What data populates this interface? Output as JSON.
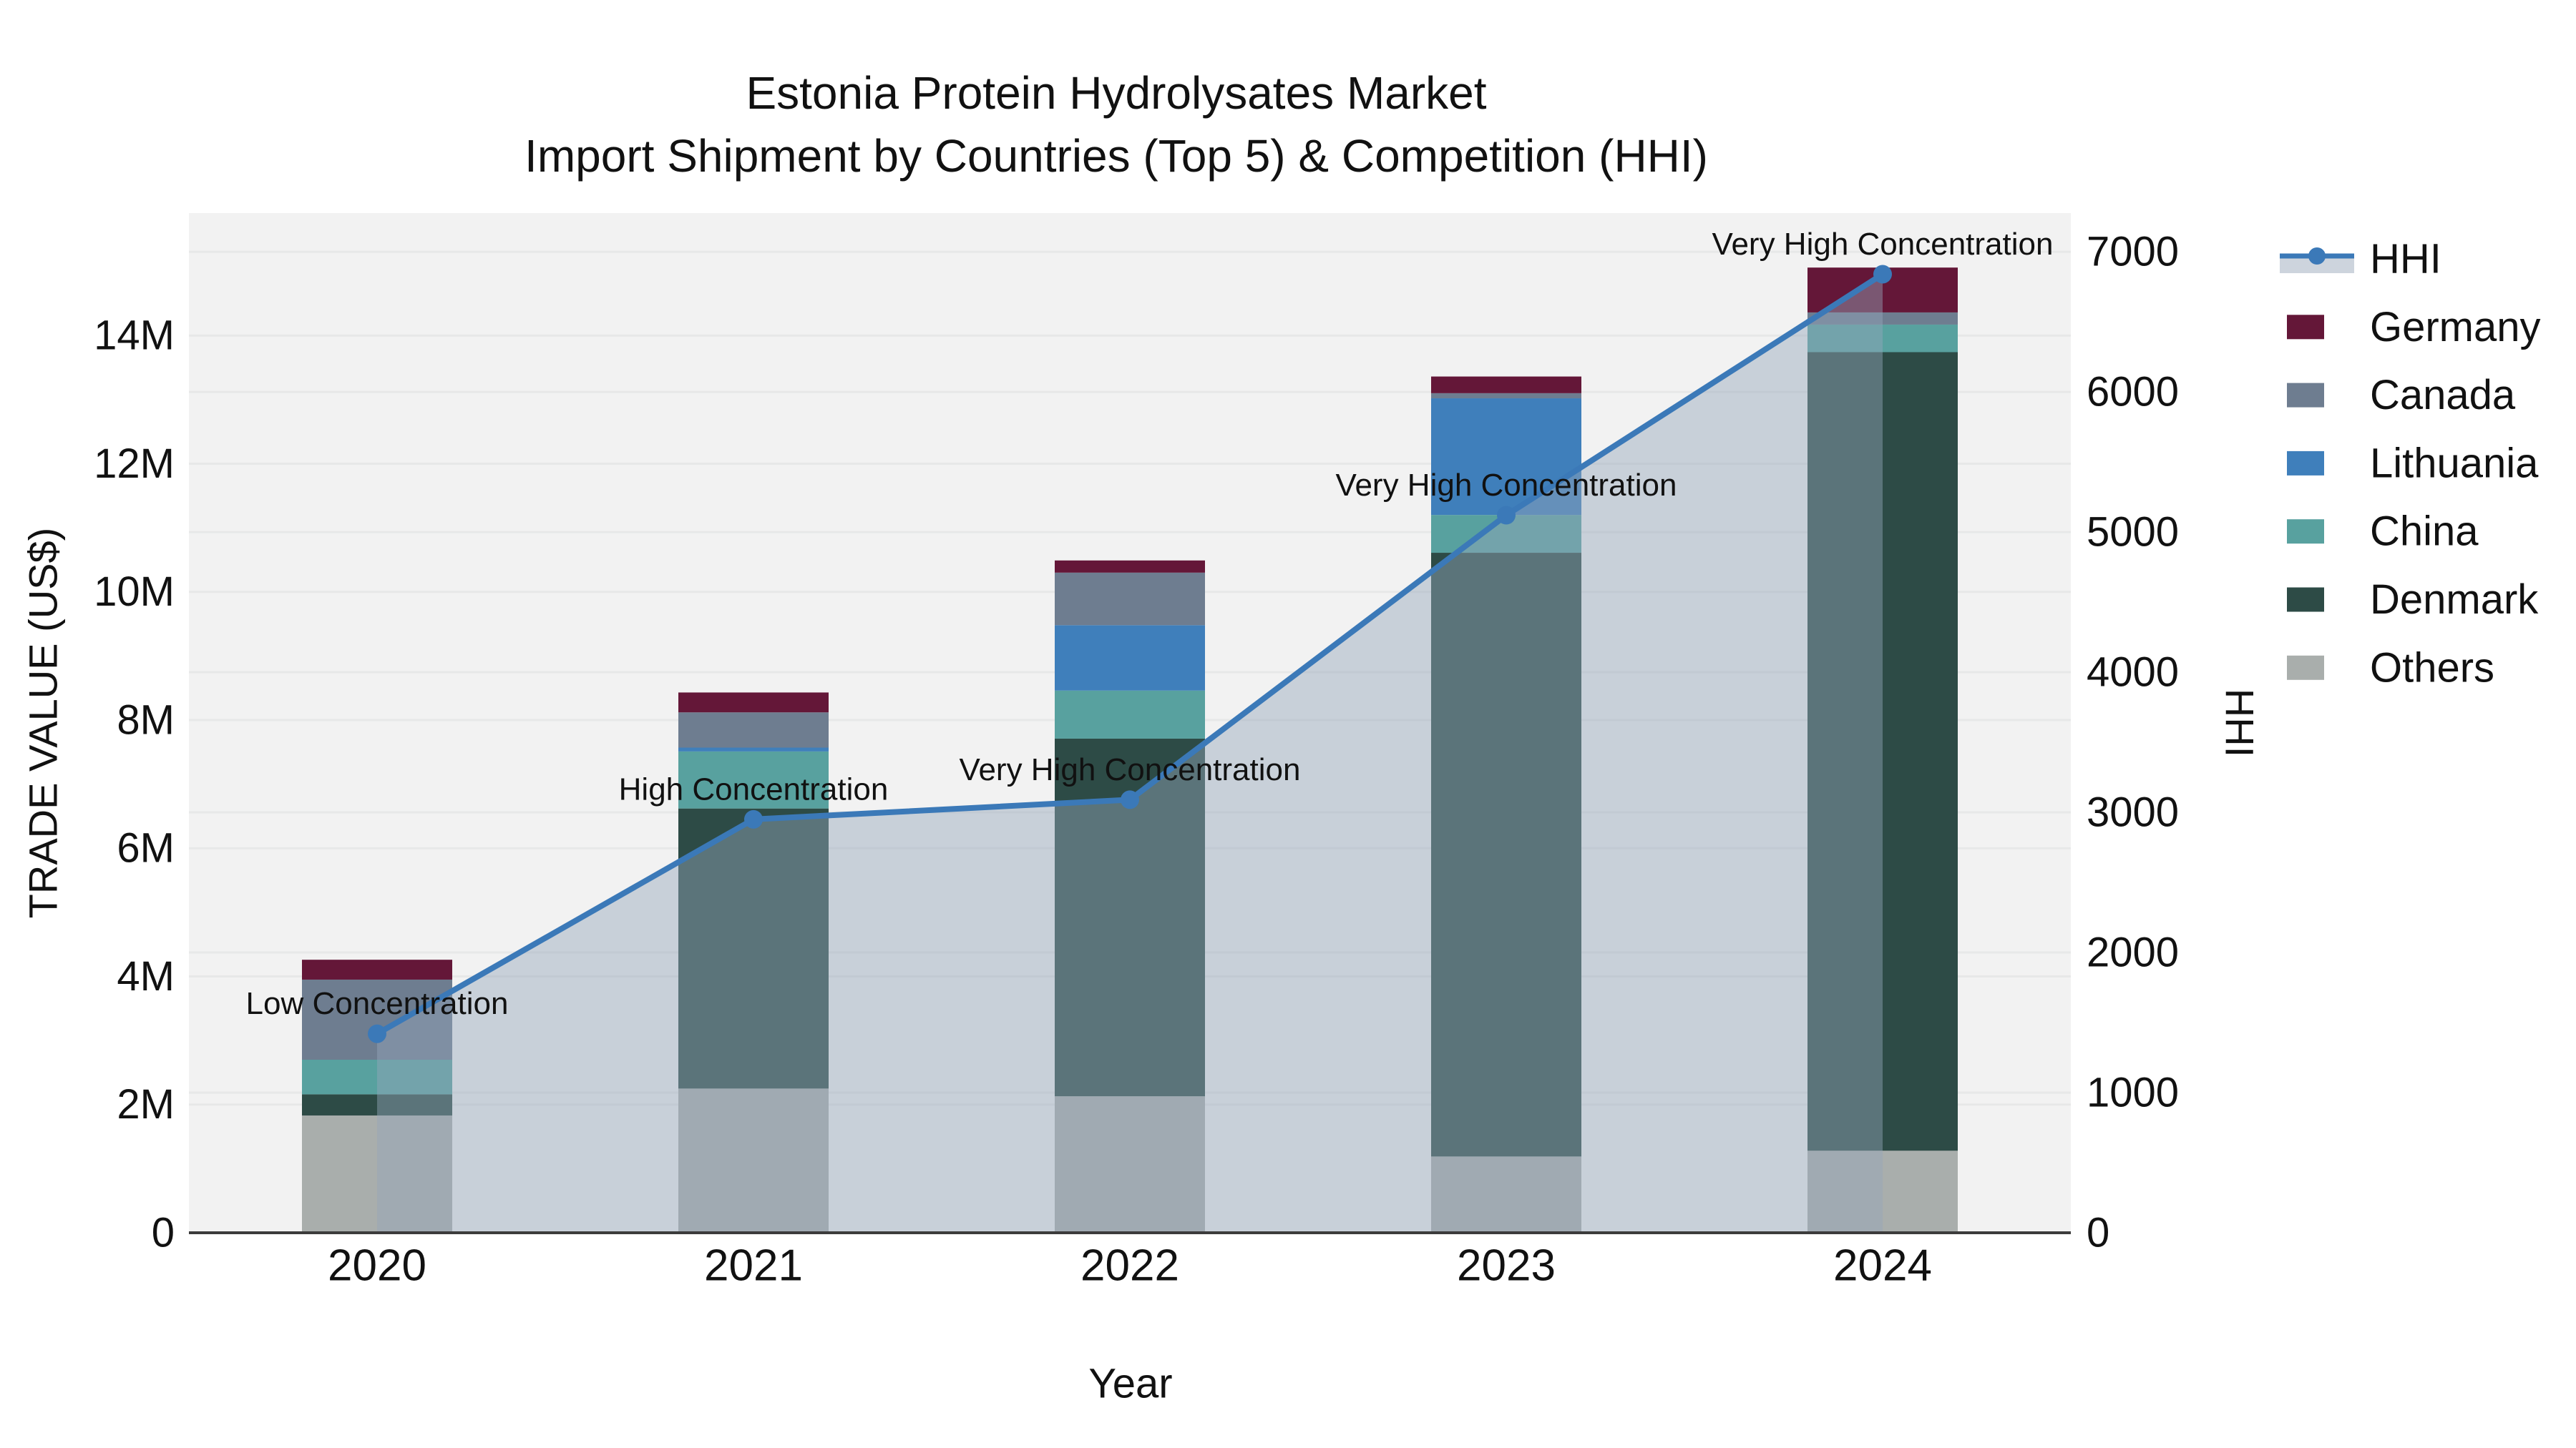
{
  "title": {
    "line1": "Estonia Protein Hydrolysates Market",
    "line2": "Import Shipment by Countries (Top 5) & Competition (HHI)"
  },
  "chart_data": {
    "type": "bar",
    "subtype": "stacked-bars-with-line-overlay",
    "categories": [
      "2020",
      "2021",
      "2022",
      "2023",
      "2024"
    ],
    "xlabel": "Year",
    "ylabel_left": "TRADE VALUE (US$)",
    "ylabel_right": "HHI",
    "yticks_left": [
      "0",
      "2M",
      "4M",
      "6M",
      "8M",
      "10M",
      "12M",
      "14M"
    ],
    "yticks_right": [
      "0",
      "1000",
      "2000",
      "3000",
      "4000",
      "5000",
      "6000",
      "7000"
    ],
    "ylim_left_musd": [
      0,
      15.91
    ],
    "ylim_right": [
      0,
      7276
    ],
    "grid": true,
    "legend_position": "right",
    "series": [
      {
        "name": "Others",
        "color": "#a9aeac",
        "values_musd": [
          1.83,
          2.25,
          2.13,
          1.19,
          1.28
        ]
      },
      {
        "name": "Denmark",
        "color": "#2d4b46",
        "values_musd": [
          0.33,
          4.37,
          5.58,
          9.42,
          12.46
        ]
      },
      {
        "name": "China",
        "color": "#58a19f",
        "values_musd": [
          0.54,
          0.89,
          0.75,
          0.59,
          0.43
        ]
      },
      {
        "name": "Lithuania",
        "color": "#3f7fbb",
        "values_musd": [
          0.0,
          0.06,
          1.02,
          1.82,
          0.0
        ]
      },
      {
        "name": "Canada",
        "color": "#6e7d90",
        "values_musd": [
          1.25,
          0.55,
          0.82,
          0.08,
          0.19
        ]
      },
      {
        "name": "Germany",
        "color": "#641738",
        "values_musd": [
          0.31,
          0.31,
          0.19,
          0.26,
          0.7
        ]
      }
    ],
    "line_series": {
      "name": "HHI",
      "color": "#3b79b8",
      "area_fill": "rgba(148,166,186,0.45)",
      "values": [
        1420,
        2950,
        3090,
        5120,
        6840
      ]
    },
    "annotations": [
      {
        "category": "2020",
        "text": "Low Concentration"
      },
      {
        "category": "2021",
        "text": "High Concentration"
      },
      {
        "category": "2022",
        "text": "Very High Concentration"
      },
      {
        "category": "2023",
        "text": "Very High Concentration"
      },
      {
        "category": "2024",
        "text": "Very High Concentration"
      }
    ],
    "legend_order": [
      "HHI",
      "Germany",
      "Canada",
      "Lithuania",
      "China",
      "Denmark",
      "Others"
    ]
  },
  "colors": {
    "figure_bg": "#ffffff",
    "plot_bg": "#f2f2f2",
    "gridline": "#e7e8e8",
    "axis_line": "#3c3c3c",
    "text": "#111111"
  }
}
